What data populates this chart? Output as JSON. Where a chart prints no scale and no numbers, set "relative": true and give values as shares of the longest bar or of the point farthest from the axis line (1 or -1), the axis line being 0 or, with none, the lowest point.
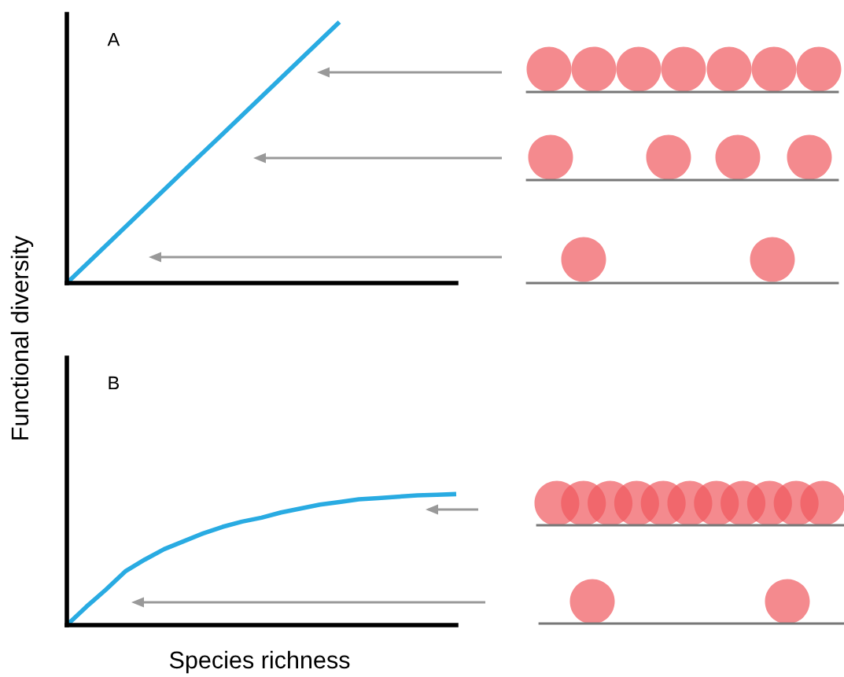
{
  "chart_data": [
    {
      "type": "line",
      "relative": true,
      "annotations": [
        "A"
      ],
      "ylabel": "Functional diversity",
      "categories": [
        null,
        null,
        null,
        null,
        null,
        null,
        null,
        null,
        null,
        null,
        null
      ],
      "series": [
        {
          "color": "#29abe2",
          "values": [
            0,
            0.143,
            0.286,
            0.429,
            0.571,
            0.714,
            0.857,
            1.0,
            null,
            null,
            null
          ]
        }
      ]
    },
    {
      "type": "line",
      "relative": true,
      "annotations": [
        "B"
      ],
      "xlabel": "Species richness",
      "categories": [
        null,
        null,
        null,
        null,
        null,
        null,
        null,
        null,
        null,
        null,
        null,
        null,
        null,
        null,
        null,
        null,
        null,
        null,
        null,
        null,
        null
      ],
      "series": [
        {
          "color": "#29abe2",
          "values": [
            0,
            0.14,
            0.27,
            0.41,
            0.5,
            0.58,
            0.64,
            0.7,
            0.75,
            0.79,
            0.82,
            0.86,
            0.89,
            0.92,
            0.94,
            0.96,
            0.97,
            0.98,
            0.99,
            0.995,
            1.0
          ]
        }
      ]
    }
  ]
}
